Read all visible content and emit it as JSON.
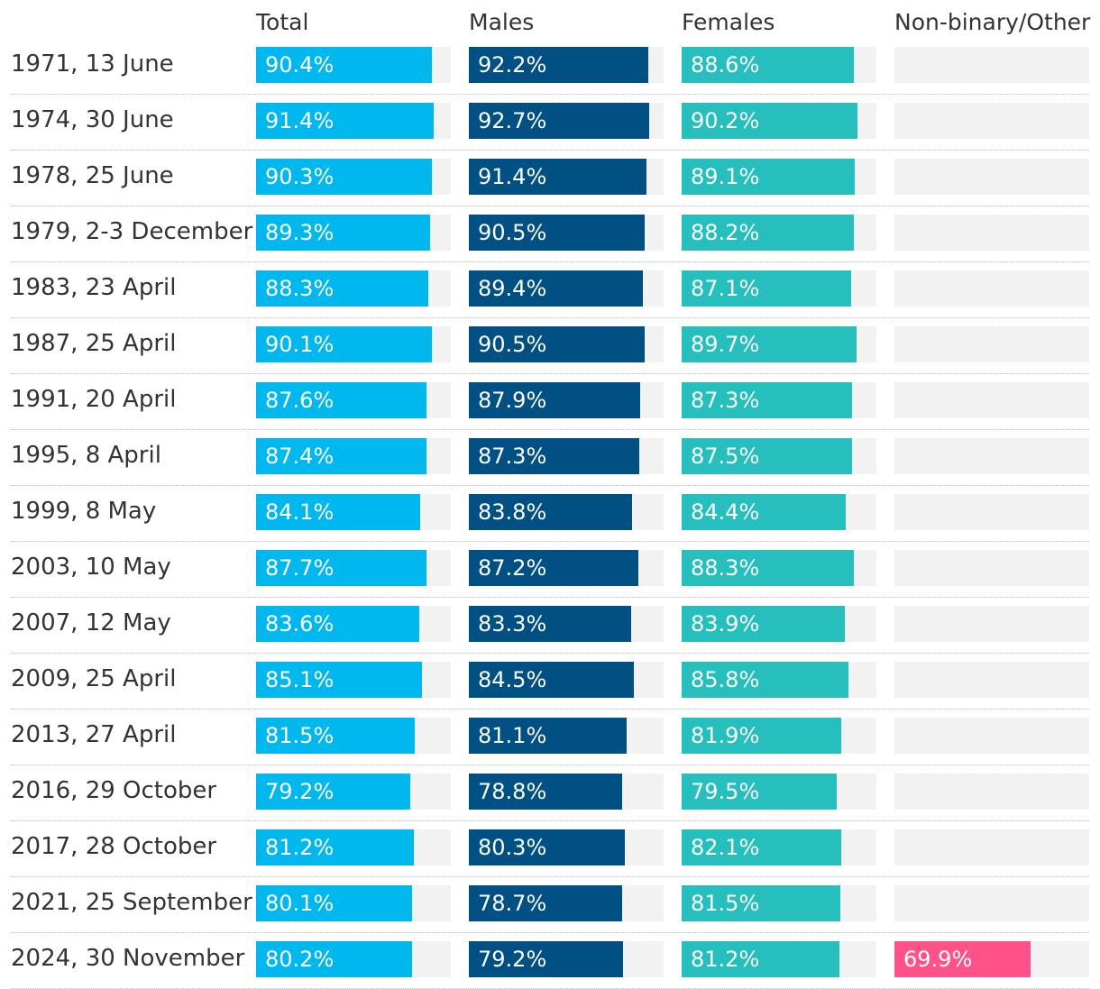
{
  "chart_data": {
    "type": "bar",
    "title": "",
    "colors": {
      "Total": "#00b7ee",
      "Males": "#005083",
      "Females": "#27bebe",
      "Non-binary/Other": "#ff528a",
      "track": "#f2f2f2"
    },
    "xlim": [
      0,
      100
    ],
    "categories": [
      "1971, 13 June",
      "1974, 30 June",
      "1978, 25 June",
      "1979, 2-3 December",
      "1983, 23 April",
      "1987, 25 April",
      "1991, 20 April",
      "1995, 8 April",
      "1999, 8 May",
      "2003, 10 May",
      "2007, 12 May",
      "2009, 25 April",
      "2013, 27 April",
      "2016, 29 October",
      "2017, 28 October",
      "2021, 25 September",
      "2024, 30 November"
    ],
    "series": [
      {
        "name": "Total",
        "values": [
          90.4,
          91.4,
          90.3,
          89.3,
          88.3,
          90.1,
          87.6,
          87.4,
          84.1,
          87.7,
          83.6,
          85.1,
          81.5,
          79.2,
          81.2,
          80.1,
          80.2
        ]
      },
      {
        "name": "Males",
        "values": [
          92.2,
          92.7,
          91.4,
          90.5,
          89.4,
          90.5,
          87.9,
          87.3,
          83.8,
          87.2,
          83.3,
          84.5,
          81.1,
          78.8,
          80.3,
          78.7,
          79.2
        ]
      },
      {
        "name": "Females",
        "values": [
          88.6,
          90.2,
          89.1,
          88.2,
          87.1,
          89.7,
          87.3,
          87.5,
          84.4,
          88.3,
          83.9,
          85.8,
          81.9,
          79.5,
          82.1,
          81.5,
          81.2
        ]
      },
      {
        "name": "Non-binary/Other",
        "values": [
          null,
          null,
          null,
          null,
          null,
          null,
          null,
          null,
          null,
          null,
          null,
          null,
          null,
          null,
          null,
          null,
          69.9
        ]
      }
    ]
  }
}
